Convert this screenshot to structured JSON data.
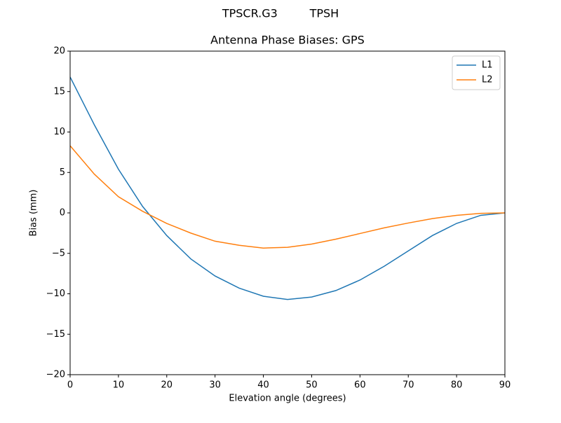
{
  "chart_data": {
    "type": "line",
    "suptitle": "TPSCR.G3         TPSH",
    "title": "Antenna Phase Biases: GPS",
    "xlabel": "Elevation angle (degrees)",
    "ylabel": "Bias (mm)",
    "x": [
      0,
      5,
      10,
      15,
      20,
      25,
      30,
      35,
      40,
      45,
      50,
      55,
      60,
      65,
      70,
      75,
      80,
      85,
      90
    ],
    "series": [
      {
        "name": "L1",
        "color": "#1f77b4",
        "values": [
          16.8,
          10.9,
          5.4,
          0.8,
          -2.8,
          -5.7,
          -7.8,
          -9.3,
          -10.3,
          -10.7,
          -10.4,
          -9.6,
          -8.3,
          -6.6,
          -4.7,
          -2.8,
          -1.3,
          -0.3,
          0
        ]
      },
      {
        "name": "L2",
        "color": "#ff7f0e",
        "values": [
          8.3,
          4.8,
          2.0,
          0.2,
          -1.3,
          -2.5,
          -3.5,
          -4.0,
          -4.35,
          -4.25,
          -3.85,
          -3.25,
          -2.55,
          -1.85,
          -1.25,
          -0.7,
          -0.3,
          -0.05,
          0
        ]
      }
    ],
    "xlim": [
      0,
      90
    ],
    "xticks": [
      0,
      10,
      20,
      30,
      40,
      50,
      60,
      70,
      80,
      90
    ],
    "ylim": [
      -20,
      20
    ],
    "yticks": [
      {
        "value": -20,
        "label": "−20"
      },
      {
        "value": -15,
        "label": "−15"
      },
      {
        "value": -10,
        "label": "−10"
      },
      {
        "value": -5,
        "label": "−5"
      },
      0,
      5,
      10,
      15,
      20
    ],
    "legend": "upper right",
    "grid": false
  }
}
